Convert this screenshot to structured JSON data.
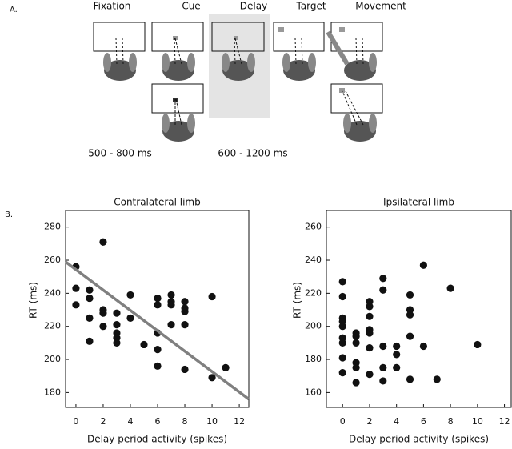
{
  "diagram": {
    "panel_label": "A.",
    "stages": [
      "Fixation",
      "Cue",
      "Delay",
      "Target",
      "Movement"
    ],
    "durations": [
      "500 - 800 ms",
      "600 - 1200 ms"
    ]
  },
  "panel_b_label": "B.",
  "chart_data": [
    {
      "type": "scatter",
      "title": "Contralateral limb",
      "x_label": "Delay period activity (spikes)",
      "y_label": "RT (ms)",
      "x": [
        0,
        0,
        0,
        1,
        1,
        1,
        1,
        2,
        2,
        2,
        2,
        3,
        3,
        3,
        3,
        3,
        4,
        4,
        5,
        6,
        6,
        6,
        6,
        6,
        7,
        7,
        7,
        7,
        8,
        8,
        8,
        8,
        8,
        10,
        10,
        11
      ],
      "y": [
        256,
        243,
        233,
        242,
        237,
        225,
        211,
        271,
        230,
        228,
        220,
        228,
        221,
        216,
        213,
        210,
        239,
        225,
        209,
        237,
        233,
        216,
        206,
        196,
        239,
        235,
        233,
        221,
        235,
        231,
        229,
        221,
        194,
        238,
        189,
        195
      ],
      "color": "#111111",
      "trend_x": [
        -0.76,
        12.7
      ],
      "trend_y": [
        259,
        176
      ],
      "trend_color": "#808080",
      "xlim": [
        -0.76,
        12.7
      ],
      "ylim": [
        171,
        290
      ],
      "xticks": [
        0,
        2,
        4,
        6,
        8,
        10,
        12
      ],
      "yticks": [
        180,
        200,
        220,
        240,
        260,
        280
      ]
    },
    {
      "type": "scatter",
      "title": "Ipsilateral limb",
      "x_label": "Delay period activity (spikes)",
      "y_label": "RT (ms)",
      "x": [
        0,
        0,
        0,
        0,
        0,
        0,
        0,
        0,
        0,
        1,
        1,
        1,
        1,
        1,
        1,
        2,
        2,
        2,
        2,
        2,
        2,
        2,
        3,
        3,
        3,
        3,
        3,
        4,
        4,
        4,
        5,
        5,
        5,
        5,
        5,
        6,
        6,
        7,
        8,
        10
      ],
      "y": [
        227,
        218,
        205,
        203,
        200,
        193,
        190,
        181,
        172,
        196,
        194,
        190,
        178,
        175,
        166,
        215,
        212,
        206,
        198,
        196,
        187,
        171,
        229,
        222,
        188,
        175,
        167,
        188,
        183,
        175,
        219,
        210,
        207,
        194,
        168,
        237,
        188,
        168,
        223,
        189
      ],
      "color": "#111111",
      "xlim": [
        -1.2,
        12.5
      ],
      "ylim": [
        151,
        270
      ],
      "xticks": [
        0,
        2,
        4,
        6,
        8,
        10,
        12
      ],
      "yticks": [
        160,
        180,
        200,
        220,
        240,
        260
      ]
    }
  ]
}
